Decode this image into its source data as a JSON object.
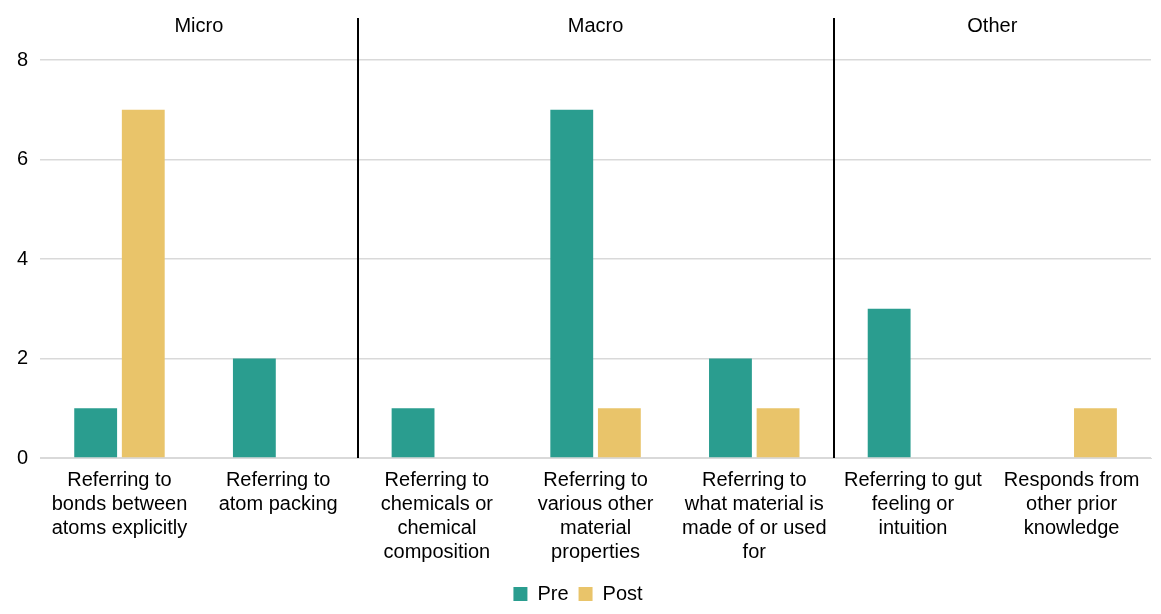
{
  "chart_data": {
    "type": "bar",
    "categories": [
      "Referring to bonds between atoms explicitly",
      "Referring to atom packing",
      "Referring to chemicals or chemical composition",
      "Referring to various other material properties",
      "Referring to what material is made of or used for",
      "Referring to gut feeling or intuition",
      "Responds from other prior knowledge"
    ],
    "series": [
      {
        "name": "Pre",
        "color": "#2a9d8f",
        "values": [
          1,
          2,
          1,
          7,
          2,
          3,
          0
        ]
      },
      {
        "name": "Post",
        "color": "#e9c46a",
        "values": [
          7,
          0,
          0,
          1,
          1,
          0,
          1
        ]
      }
    ],
    "ylim": [
      0,
      8
    ],
    "yticks": [
      0,
      2,
      4,
      6,
      8
    ],
    "grid": "y",
    "legend": "bottom",
    "annotations": [
      "Micro",
      "Macro",
      "Other"
    ]
  }
}
